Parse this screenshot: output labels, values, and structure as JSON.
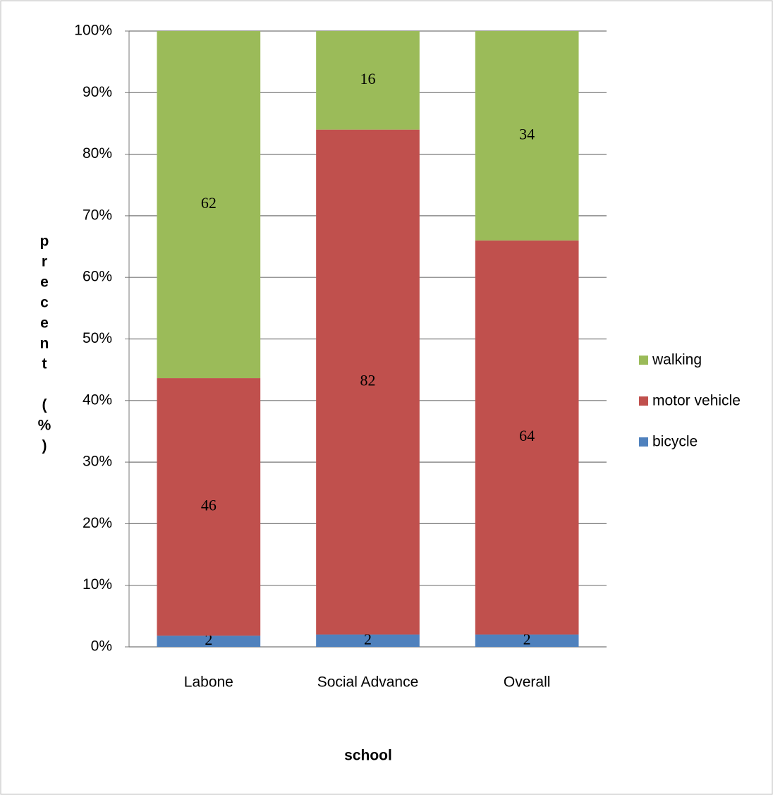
{
  "chart_data": {
    "type": "stacked_percent",
    "categories": [
      "Labone",
      "Social Advance",
      "Overall"
    ],
    "series": [
      {
        "name": "bicycle",
        "color": "#4f81bd",
        "values": [
          2,
          2,
          2
        ]
      },
      {
        "name": "motor vehicle",
        "color": "#c0504d",
        "values": [
          46,
          82,
          64
        ]
      },
      {
        "name": "walking",
        "color": "#9bbb59",
        "values": [
          62,
          16,
          34
        ]
      }
    ],
    "ylim": [
      0,
      100
    ],
    "yticks": [
      {
        "value": 0,
        "label": "0%"
      },
      {
        "value": 10,
        "label": "10%"
      },
      {
        "value": 20,
        "label": "20%"
      },
      {
        "value": 30,
        "label": "30%"
      },
      {
        "value": 40,
        "label": "40%"
      },
      {
        "value": 50,
        "label": "50%"
      },
      {
        "value": 60,
        "label": "60%"
      },
      {
        "value": 70,
        "label": "70%"
      },
      {
        "value": 80,
        "label": "80%"
      },
      {
        "value": 90,
        "label": "90%"
      },
      {
        "value": 100,
        "label": "100%"
      }
    ],
    "grid": true,
    "x_label": "school",
    "y_label": "precent (%)",
    "legend": "right"
  }
}
